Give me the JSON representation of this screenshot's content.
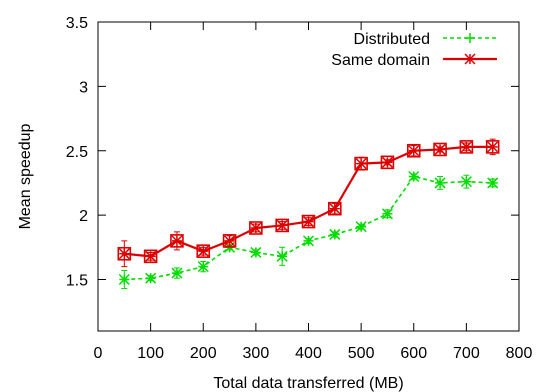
{
  "chart_data": {
    "type": "line",
    "title": "",
    "xlabel": "Total data transferred (MB)",
    "ylabel": "Mean speedup",
    "xlim": [
      0,
      800
    ],
    "ylim": [
      1.1,
      3.5
    ],
    "x_ticks": [
      "0",
      "100",
      "200",
      "300",
      "400",
      "500",
      "600",
      "700",
      "800"
    ],
    "y_ticks": [
      "1.5",
      "2",
      "2.5",
      "3",
      "3.5"
    ],
    "grid": false,
    "legend_position": "top-right",
    "x": [
      50,
      100,
      150,
      200,
      250,
      300,
      350,
      400,
      450,
      500,
      550,
      600,
      650,
      700,
      750
    ],
    "series": [
      {
        "name": "Distributed",
        "color": "#00dd00",
        "line_style": "dashed",
        "marker": "plus",
        "values": [
          1.5,
          1.51,
          1.55,
          1.6,
          1.75,
          1.71,
          1.68,
          1.8,
          1.85,
          1.91,
          2.01,
          2.3,
          2.25,
          2.26,
          2.25
        ],
        "errors": [
          0.07,
          0.02,
          0.04,
          0.04,
          0.02,
          0.02,
          0.07,
          0.02,
          0.02,
          0.02,
          0.03,
          0.02,
          0.05,
          0.05,
          0.03
        ]
      },
      {
        "name": "Same domain",
        "color": "#dd0000",
        "line_style": "solid",
        "marker": "star-box",
        "values": [
          1.7,
          1.68,
          1.8,
          1.72,
          1.8,
          1.9,
          1.92,
          1.95,
          2.05,
          2.4,
          2.41,
          2.5,
          2.51,
          2.53,
          2.53
        ],
        "errors": [
          0.1,
          0.03,
          0.07,
          0.03,
          0.04,
          0.03,
          0.03,
          0.03,
          0.04,
          0.05,
          0.02,
          0.04,
          0.02,
          0.03,
          0.06
        ]
      }
    ]
  }
}
